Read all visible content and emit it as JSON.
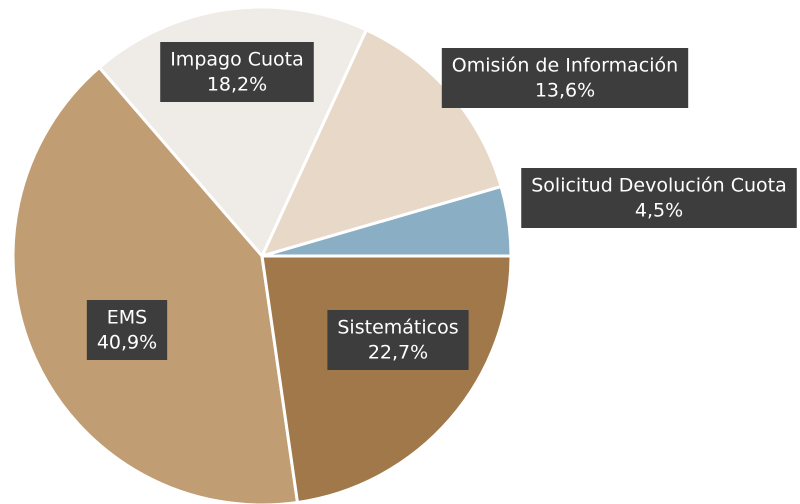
{
  "chart_data": {
    "type": "pie",
    "categories": [
      "Solicitud Devolución Cuota",
      "Omisión de Información",
      "Impago Cuota",
      "EMS",
      "Sistemáticos"
    ],
    "values": [
      4.5,
      13.6,
      18.2,
      40.9,
      22.7
    ],
    "value_labels": [
      "4,5%",
      "13,6%",
      "18,2%",
      "40,9%",
      "22,7%"
    ],
    "colors": [
      "#8aafc4",
      "#e7d8c8",
      "#efebe6",
      "#c19d74",
      "#a0784a"
    ]
  }
}
